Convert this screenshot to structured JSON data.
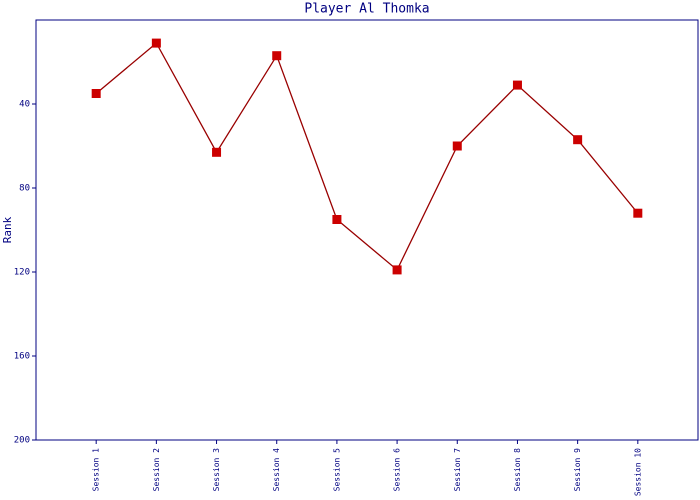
{
  "chart_data": {
    "type": "line",
    "title": "Player Al Thomka",
    "y_label": "Rank",
    "categories": [
      "Session 1",
      "Session 2",
      "Session 3",
      "Session 4",
      "Session 5",
      "Session 6",
      "Session 7",
      "Session 8",
      "Session 9",
      "Session 10"
    ],
    "series": [
      {
        "name": "Rank",
        "color": "#990000",
        "marker_color": "#cc0000",
        "values": [
          35,
          11,
          63,
          17,
          95,
          119,
          60,
          31,
          57,
          92
        ]
      }
    ],
    "ylim": [
      200,
      0
    ],
    "yticks": [
      40,
      80,
      120,
      160,
      200
    ],
    "axis_color": "#000080"
  }
}
